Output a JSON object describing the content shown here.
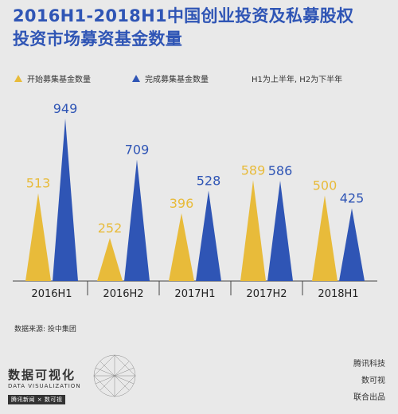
{
  "title": {
    "line1": "2016H1-2018H1中国创业投资及私募股权",
    "line2": "投资市场募资基金数量"
  },
  "legend": {
    "started": "开始募集基金数量",
    "completed": "完成募集基金数量",
    "note": "H1为上半年, H2为下半年"
  },
  "colors": {
    "started": "#e8bb3a",
    "completed": "#2f55b5",
    "title": "#2f55b5"
  },
  "chart_data": {
    "type": "bar",
    "categories": [
      "2016H1",
      "2016H2",
      "2017H1",
      "2017H2",
      "2018H1"
    ],
    "series": [
      {
        "name": "开始募集基金数量",
        "values": [
          513,
          252,
          396,
          589,
          500
        ]
      },
      {
        "name": "完成募集基金数量",
        "values": [
          949,
          709,
          528,
          586,
          425
        ]
      }
    ],
    "ylim": [
      0,
      1000
    ],
    "grid": false,
    "legend_position": "top"
  },
  "source": "数据来源: 投中集团",
  "logo": {
    "title": "数据可视化",
    "subtitle": "DATA VISUALIZATION",
    "partners": "腾讯新闻 × 数可视"
  },
  "credits": {
    "line1": "腾讯科技",
    "line2": "数可视",
    "line3": "联合出品"
  }
}
